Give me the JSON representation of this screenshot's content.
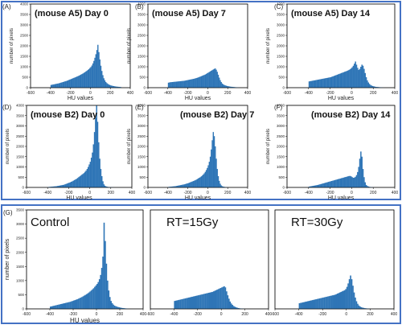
{
  "figure": {
    "bar_color": "#2e75b6",
    "frame_color": "#4472c4"
  },
  "chart_data": [
    {
      "type": "bar",
      "id": "A",
      "panel_label": "(A)",
      "title": "(mouse A5) Day 0",
      "xlabel": "HU values",
      "ylabel": "number of pixels",
      "xlim": [
        -600,
        400
      ],
      "ylim": [
        0,
        4000
      ],
      "xticks": [
        -600,
        -400,
        -200,
        0,
        200,
        400
      ],
      "yticks": [
        0,
        500,
        1000,
        1500,
        2000,
        2500,
        3000,
        3500,
        4000
      ],
      "bin_start": -600,
      "bin_width": 10,
      "values": [
        0,
        0,
        0,
        0,
        0,
        0,
        0,
        0,
        0,
        0,
        0,
        0,
        0,
        0,
        0,
        0,
        0,
        0,
        0,
        0,
        130,
        140,
        150,
        160,
        170,
        180,
        190,
        200,
        210,
        225,
        240,
        255,
        270,
        285,
        300,
        315,
        330,
        350,
        370,
        390,
        410,
        430,
        450,
        470,
        490,
        510,
        530,
        550,
        575,
        600,
        625,
        650,
        680,
        710,
        740,
        775,
        810,
        850,
        890,
        940,
        990,
        1060,
        1160,
        1280,
        1430,
        1600,
        1800,
        2050,
        1700,
        1350,
        1050,
        800,
        600,
        450,
        350,
        270,
        220,
        180,
        150,
        130,
        110,
        95,
        85,
        75,
        65,
        55,
        50,
        45,
        40,
        35,
        30,
        0,
        0,
        0,
        0,
        0,
        0,
        0,
        0,
        0
      ]
    },
    {
      "type": "bar",
      "id": "B",
      "panel_label": "(B)",
      "title": "(mouse A5) Day 7",
      "xlabel": "HU values",
      "ylabel": "number of pixels",
      "xlim": [
        -600,
        400
      ],
      "ylim": [
        0,
        4000
      ],
      "xticks": [
        -600,
        -400,
        -200,
        0,
        200,
        400
      ],
      "yticks": [
        0,
        500,
        1000,
        1500,
        2000,
        2500,
        3000,
        3500,
        4000
      ],
      "bin_start": -600,
      "bin_width": 10,
      "values": [
        0,
        0,
        0,
        0,
        0,
        0,
        0,
        0,
        0,
        0,
        0,
        0,
        0,
        0,
        0,
        0,
        0,
        0,
        0,
        0,
        240,
        250,
        260,
        265,
        270,
        275,
        280,
        285,
        290,
        295,
        300,
        305,
        310,
        315,
        320,
        325,
        330,
        340,
        350,
        360,
        370,
        380,
        390,
        400,
        410,
        420,
        430,
        445,
        460,
        475,
        490,
        510,
        530,
        550,
        570,
        590,
        610,
        630,
        660,
        690,
        720,
        750,
        780,
        810,
        840,
        870,
        900,
        920,
        860,
        760,
        620,
        480,
        360,
        270,
        200,
        160,
        130,
        110,
        95,
        80,
        70,
        60,
        50,
        45,
        40,
        35,
        30,
        25,
        20,
        15,
        10,
        0,
        0,
        0,
        0,
        0,
        0,
        0,
        0,
        0
      ]
    },
    {
      "type": "bar",
      "id": "C",
      "panel_label": "(C)",
      "title": "(mouse A5) Day 14",
      "xlabel": "HU values",
      "ylabel": "number of pixels",
      "xlim": [
        -600,
        400
      ],
      "ylim": [
        0,
        4000
      ],
      "xticks": [
        -600,
        -400,
        -200,
        0,
        200,
        400
      ],
      "yticks": [
        0,
        500,
        1000,
        1500,
        2000,
        2500,
        3000,
        3500,
        4000
      ],
      "bin_start": -600,
      "bin_width": 10,
      "values": [
        0,
        0,
        0,
        0,
        0,
        0,
        0,
        0,
        0,
        0,
        0,
        0,
        0,
        0,
        0,
        0,
        0,
        0,
        0,
        0,
        300,
        310,
        320,
        330,
        340,
        350,
        360,
        370,
        380,
        390,
        400,
        410,
        420,
        430,
        440,
        450,
        460,
        470,
        480,
        490,
        500,
        520,
        540,
        560,
        580,
        600,
        620,
        640,
        660,
        680,
        700,
        720,
        740,
        760,
        780,
        800,
        820,
        850,
        880,
        920,
        980,
        1050,
        1150,
        1250,
        1100,
        950,
        850,
        900,
        1000,
        1100,
        1050,
        900,
        700,
        500,
        350,
        250,
        180,
        130,
        100,
        80,
        65,
        50,
        40,
        35,
        30,
        25,
        20,
        15,
        10,
        5,
        0,
        0,
        0,
        0,
        0,
        0,
        0,
        0,
        0,
        0
      ]
    },
    {
      "type": "bar",
      "id": "D",
      "panel_label": "(D)",
      "title": "(mouse B2) Day 0",
      "xlabel": "HU values",
      "ylabel": "number of pixels",
      "xlim": [
        -600,
        400
      ],
      "ylim": [
        0,
        4000
      ],
      "xticks": [
        -600,
        -400,
        -200,
        0,
        200,
        400
      ],
      "yticks": [
        0,
        500,
        1000,
        1500,
        2000,
        2500,
        3000,
        3500,
        4000
      ],
      "bin_start": -600,
      "bin_width": 10,
      "values": [
        0,
        0,
        0,
        0,
        0,
        0,
        0,
        0,
        0,
        0,
        0,
        0,
        0,
        0,
        0,
        0,
        0,
        0,
        0,
        0,
        20,
        25,
        30,
        35,
        40,
        45,
        50,
        55,
        60,
        70,
        80,
        90,
        100,
        110,
        120,
        130,
        150,
        170,
        190,
        210,
        230,
        250,
        275,
        300,
        330,
        360,
        390,
        420,
        460,
        500,
        540,
        580,
        620,
        660,
        700,
        760,
        820,
        900,
        1000,
        1120,
        1250,
        1450,
        1700,
        2100,
        2700,
        3400,
        4000,
        3200,
        2200,
        1400,
        900,
        550,
        300,
        150,
        80,
        50,
        35,
        25,
        20,
        15,
        10,
        8,
        5,
        0,
        0,
        0,
        0,
        0,
        0,
        0,
        0,
        0,
        0,
        0,
        0,
        0,
        0,
        0,
        0,
        0
      ]
    },
    {
      "type": "bar",
      "id": "E",
      "panel_label": "(E)",
      "title": "(mouse B2) Day 7",
      "xlabel": "HU values",
      "ylabel": "number of pixels",
      "xlim": [
        -600,
        400
      ],
      "ylim": [
        0,
        4000
      ],
      "xticks": [
        -600,
        -400,
        -200,
        0,
        200,
        400
      ],
      "yticks": [
        0,
        500,
        1000,
        1500,
        2000,
        2500,
        3000,
        3500,
        4000
      ],
      "bin_start": -600,
      "bin_width": 10,
      "values": [
        0,
        0,
        0,
        0,
        0,
        0,
        0,
        0,
        0,
        0,
        0,
        0,
        0,
        0,
        0,
        0,
        0,
        0,
        0,
        0,
        25,
        30,
        35,
        40,
        45,
        50,
        55,
        60,
        70,
        80,
        90,
        100,
        110,
        120,
        130,
        140,
        150,
        165,
        180,
        195,
        210,
        230,
        250,
        270,
        290,
        310,
        330,
        350,
        380,
        410,
        440,
        470,
        500,
        540,
        580,
        630,
        690,
        760,
        850,
        950,
        1080,
        1250,
        1500,
        1850,
        2300,
        2700,
        2500,
        2000,
        1400,
        900,
        550,
        320,
        180,
        100,
        60,
        40,
        30,
        20,
        15,
        10,
        5,
        0,
        0,
        0,
        0,
        0,
        0,
        0,
        0,
        0,
        0,
        0,
        0,
        0,
        0,
        0,
        0,
        0,
        0,
        0
      ]
    },
    {
      "type": "bar",
      "id": "F",
      "panel_label": "(F)",
      "title": "(mouse B2) Day 14",
      "xlabel": "HU values",
      "ylabel": "number of pixels",
      "xlim": [
        -600,
        400
      ],
      "ylim": [
        0,
        4000
      ],
      "xticks": [
        -600,
        -400,
        -200,
        0,
        200,
        400
      ],
      "yticks": [
        0,
        500,
        1000,
        1500,
        2000,
        2500,
        3000,
        3500,
        4000
      ],
      "bin_start": -600,
      "bin_width": 10,
      "values": [
        0,
        0,
        0,
        0,
        0,
        0,
        0,
        0,
        0,
        0,
        0,
        0,
        0,
        0,
        0,
        0,
        0,
        0,
        0,
        0,
        40,
        50,
        60,
        70,
        80,
        90,
        100,
        110,
        120,
        135,
        150,
        165,
        180,
        195,
        210,
        225,
        240,
        255,
        270,
        285,
        300,
        315,
        330,
        345,
        360,
        375,
        390,
        405,
        420,
        435,
        450,
        465,
        480,
        495,
        510,
        525,
        540,
        555,
        560,
        540,
        500,
        470,
        480,
        520,
        600,
        750,
        1000,
        1400,
        1750,
        1500,
        900,
        500,
        250,
        120,
        70,
        45,
        30,
        20,
        15,
        10,
        5,
        0,
        0,
        0,
        0,
        0,
        0,
        0,
        0,
        0,
        0,
        0,
        0,
        0,
        0,
        0,
        0,
        0,
        0,
        0
      ]
    },
    {
      "type": "bar",
      "id": "G",
      "panel_label": "(G)",
      "title": "Control",
      "xlabel": "HU values",
      "ylabel": "number of pixels",
      "xlim": [
        -600,
        400
      ],
      "ylim": [
        0,
        3500
      ],
      "xticks": [
        -600,
        -400,
        -200,
        0,
        200,
        400
      ],
      "yticks": [
        0,
        500,
        1000,
        1500,
        2000,
        2500,
        3000,
        3500
      ],
      "bin_start": -600,
      "bin_width": 10,
      "values": [
        0,
        0,
        0,
        0,
        0,
        0,
        0,
        0,
        0,
        0,
        0,
        0,
        0,
        0,
        0,
        0,
        0,
        0,
        0,
        0,
        80,
        90,
        100,
        110,
        120,
        130,
        140,
        150,
        160,
        170,
        180,
        190,
        200,
        210,
        220,
        230,
        240,
        250,
        265,
        280,
        295,
        310,
        325,
        340,
        360,
        380,
        400,
        420,
        445,
        470,
        495,
        520,
        550,
        580,
        615,
        650,
        690,
        730,
        780,
        830,
        880,
        950,
        1050,
        1200,
        1450,
        1850,
        3050,
        2400,
        1600,
        1000,
        650,
        420,
        280,
        200,
        150,
        115,
        95,
        80,
        65,
        55,
        45,
        35,
        30,
        25,
        20,
        15,
        10,
        5,
        0,
        0,
        0,
        0,
        0,
        0,
        0,
        0,
        0,
        0,
        0,
        0
      ]
    },
    {
      "type": "bar",
      "id": "H",
      "panel_label": "",
      "title": "RT=15Gy",
      "xlabel": "",
      "ylabel": "",
      "xlim": [
        -600,
        400
      ],
      "ylim": [
        0,
        3500
      ],
      "xticks": [
        -600,
        -400,
        -200,
        0,
        200,
        400
      ],
      "yticks": [],
      "bin_start": -600,
      "bin_width": 10,
      "values": [
        0,
        0,
        0,
        0,
        0,
        0,
        0,
        0,
        0,
        0,
        0,
        0,
        0,
        0,
        0,
        0,
        0,
        0,
        0,
        0,
        280,
        290,
        300,
        310,
        320,
        330,
        340,
        350,
        360,
        370,
        380,
        390,
        400,
        410,
        420,
        430,
        440,
        450,
        460,
        470,
        480,
        490,
        500,
        510,
        520,
        530,
        540,
        550,
        560,
        570,
        580,
        590,
        600,
        620,
        640,
        660,
        680,
        700,
        720,
        740,
        760,
        780,
        800,
        760,
        620,
        480,
        360,
        260,
        190,
        140,
        100,
        75,
        55,
        40,
        30,
        20,
        15,
        10,
        5,
        0,
        0,
        0,
        0,
        0,
        0,
        0,
        0,
        0,
        0,
        0,
        0,
        0,
        0,
        0,
        0,
        0,
        0,
        0,
        0,
        0
      ]
    },
    {
      "type": "bar",
      "id": "I",
      "panel_label": "",
      "title": "RT=30Gy",
      "xlabel": "",
      "ylabel": "",
      "xlim": [
        -600,
        400
      ],
      "ylim": [
        0,
        3500
      ],
      "xticks": [
        -600,
        -400,
        -200,
        0,
        200,
        400
      ],
      "yticks": [],
      "bin_start": -600,
      "bin_width": 10,
      "values": [
        0,
        0,
        0,
        0,
        0,
        0,
        0,
        0,
        0,
        0,
        0,
        0,
        0,
        0,
        0,
        0,
        0,
        0,
        0,
        0,
        200,
        210,
        220,
        230,
        240,
        250,
        260,
        270,
        280,
        290,
        300,
        310,
        320,
        330,
        340,
        350,
        360,
        370,
        380,
        390,
        400,
        410,
        420,
        430,
        440,
        450,
        460,
        470,
        480,
        490,
        500,
        520,
        540,
        560,
        580,
        600,
        620,
        640,
        660,
        700,
        780,
        900,
        1050,
        1180,
        1050,
        820,
        580,
        400,
        270,
        180,
        120,
        85,
        60,
        45,
        35,
        25,
        20,
        15,
        10,
        5,
        0,
        0,
        0,
        0,
        0,
        0,
        0,
        0,
        0,
        0,
        0,
        0,
        0,
        0,
        0,
        0,
        0,
        0,
        0,
        0
      ]
    }
  ]
}
